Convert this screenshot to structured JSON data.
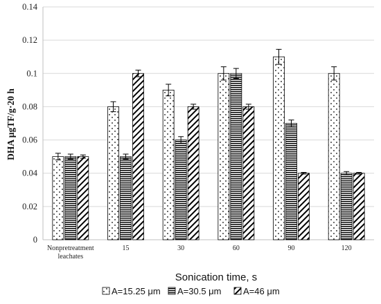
{
  "chart_data": {
    "type": "bar",
    "title": "",
    "xlabel": "Sonication time, s",
    "ylabel": "DHA μgTF/g·20 h",
    "ylim": [
      0,
      0.14
    ],
    "yticks": [
      "0",
      "0.02",
      "0.04",
      "0.06",
      "0.08",
      "0.1",
      "0.12",
      "0.14"
    ],
    "grid": true,
    "legend_position": "bottom",
    "categories": [
      "Nonpretreatment leachates",
      "15",
      "30",
      "60",
      "90",
      "120"
    ],
    "series": [
      {
        "name": "A=15.25 μm",
        "pattern": "dots",
        "values": [
          0.05,
          0.08,
          0.09,
          0.1,
          0.11,
          0.1
        ],
        "errors": [
          0.002,
          0.003,
          0.0035,
          0.004,
          0.0045,
          0.004
        ]
      },
      {
        "name": "A=30.5 μm",
        "pattern": "horizontal-lines",
        "values": [
          0.05,
          0.05,
          0.06,
          0.1,
          0.07,
          0.04
        ],
        "errors": [
          0.0015,
          0.0015,
          0.002,
          0.003,
          0.002,
          0.001
        ]
      },
      {
        "name": "A=46 μm",
        "pattern": "diagonal-lines",
        "values": [
          0.05,
          0.1,
          0.08,
          0.08,
          0.04,
          0.04
        ],
        "errors": [
          0.001,
          0.002,
          0.0015,
          0.0015,
          0.0005,
          0.0005
        ]
      }
    ],
    "colors": {
      "bar_stroke": "#000000",
      "grid": "#d9d9d9",
      "axis": "#bfbfbf"
    }
  }
}
